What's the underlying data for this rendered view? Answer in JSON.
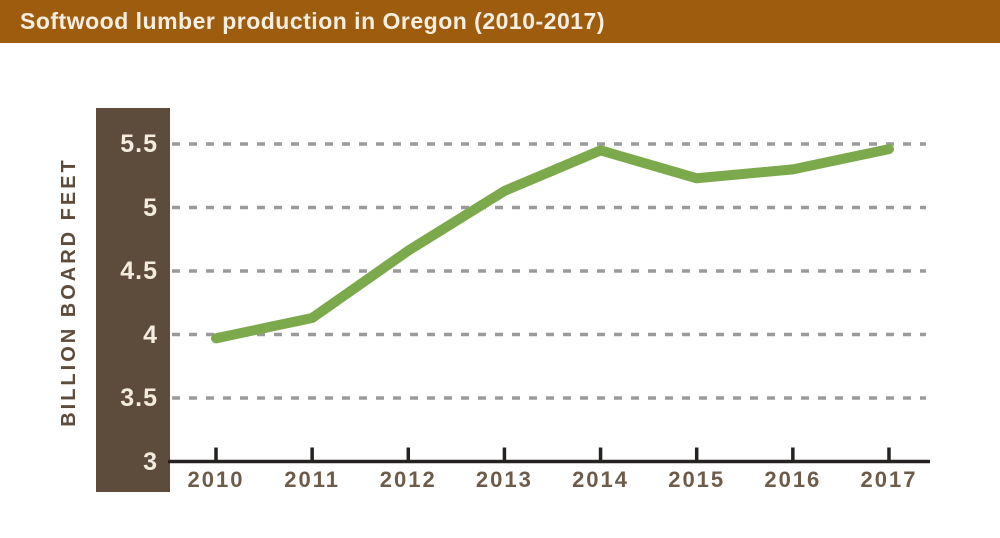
{
  "header": {
    "title": "Softwood lumber production in Oregon (2010-2017)",
    "bg_color": "#9e5c0f",
    "text_color": "#f6efe1"
  },
  "chart_data": {
    "type": "line",
    "title": "Softwood lumber production in Oregon (2010-2017)",
    "xlabel": "",
    "ylabel": "BILLION BOARD FEET",
    "categories": [
      "2010",
      "2011",
      "2012",
      "2013",
      "2014",
      "2015",
      "2016",
      "2017"
    ],
    "series": [
      {
        "name": "Softwood lumber production (billion board feet)",
        "values": [
          3.97,
          4.13,
          4.66,
          5.13,
          5.45,
          5.23,
          5.3,
          5.46
        ]
      }
    ],
    "ylim": [
      3,
      5.75
    ],
    "yticks": [
      5.5,
      5,
      4.5,
      4,
      3.5,
      3
    ],
    "grid": "horizontal dashed",
    "legend": "none",
    "colors": {
      "line": "#7ba94b",
      "gridline": "#9a9a9a",
      "axis": "#262222",
      "panel": "#5d4b3c",
      "ytick_label": "#f3ecdf",
      "xtick_label": "#6e5c4b",
      "y_axis_title": "#5d4b3c"
    }
  }
}
